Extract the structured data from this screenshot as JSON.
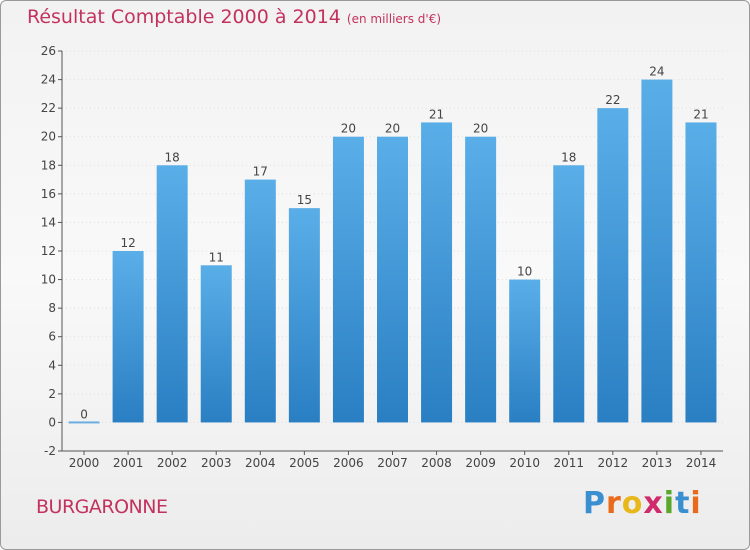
{
  "header": {
    "title": "Résultat Comptable 2000 à 2014",
    "unit": "(en milliers d'€)"
  },
  "footer": {
    "commune": "BURGARONNE"
  },
  "logo": {
    "text": "Proxiti",
    "letters": [
      "P",
      "r",
      "o",
      "x",
      "i",
      "t",
      "i"
    ],
    "colors": [
      "#3a8fd1",
      "#e86a1a",
      "#e8b81a",
      "#d02a6a",
      "#5aa82a",
      "#3a8fd1",
      "#e86a1a"
    ]
  },
  "colors": {
    "bar_top": "#5aaee8",
    "bar_bottom": "#2a7fc3",
    "zero_line": "#6aaee0",
    "grid": "#dddddd",
    "axis": "#555555",
    "text": "#444444"
  },
  "chart_data": {
    "type": "bar",
    "title": "Résultat Comptable 2000 à 2014",
    "subtitle": "(en milliers d'€)",
    "xlabel": "",
    "ylabel": "",
    "categories": [
      "2000",
      "2001",
      "2002",
      "2003",
      "2004",
      "2005",
      "2006",
      "2007",
      "2008",
      "2009",
      "2010",
      "2011",
      "2012",
      "2013",
      "2014"
    ],
    "values": [
      0,
      12,
      18,
      11,
      17,
      15,
      20,
      20,
      21,
      20,
      10,
      18,
      22,
      24,
      21
    ],
    "ylim": [
      -2,
      26
    ],
    "yticks": [
      -2,
      0,
      2,
      4,
      6,
      8,
      10,
      12,
      14,
      16,
      18,
      20,
      22,
      24,
      26
    ],
    "grid": true,
    "data_labels": true
  }
}
